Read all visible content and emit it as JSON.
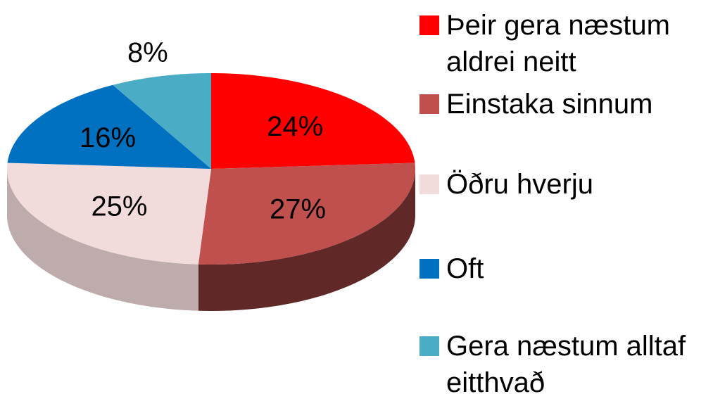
{
  "chart_data": {
    "type": "pie",
    "categories": [
      "Þeir gera næstum aldrei neitt",
      "Einstaka sinnum",
      "Öðru hverju",
      "Oft",
      "Gera næstum alltaf eitthvað"
    ],
    "values": [
      24,
      27,
      25,
      16,
      8
    ],
    "value_labels": [
      "24%",
      "27%",
      "25%",
      "16%",
      "8%"
    ],
    "colors": [
      "#ff0000",
      "#c0504d",
      "#f2dcdb",
      "#0070c0",
      "#4bacc6"
    ],
    "legend": "right"
  }
}
